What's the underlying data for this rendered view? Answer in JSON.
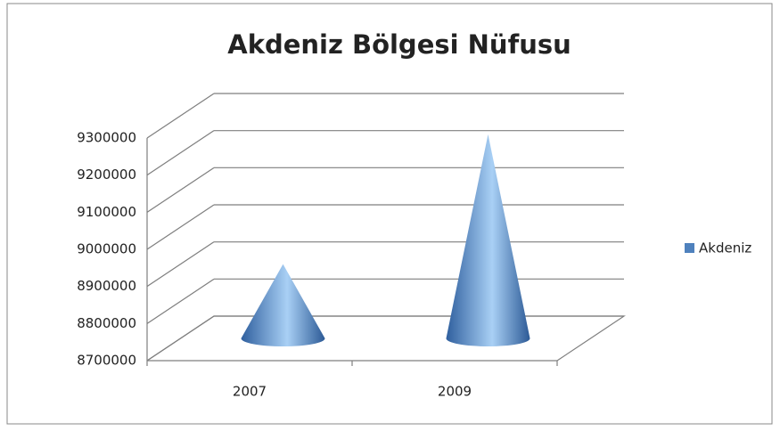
{
  "chart_data": {
    "type": "bar",
    "title": "Akdeniz Bölgesi Nüfusu",
    "categories": [
      "2007",
      "2009"
    ],
    "series": [
      {
        "name": "Akdeniz",
        "color": "#4f81bd",
        "values": [
          8900000,
          9250000
        ]
      }
    ],
    "ylim": [
      8700000,
      9300000
    ],
    "yticks": [
      8700000,
      8800000,
      8900000,
      9000000,
      9100000,
      9200000,
      9300000
    ],
    "grid": true,
    "legend": "right",
    "shape": "cone"
  }
}
